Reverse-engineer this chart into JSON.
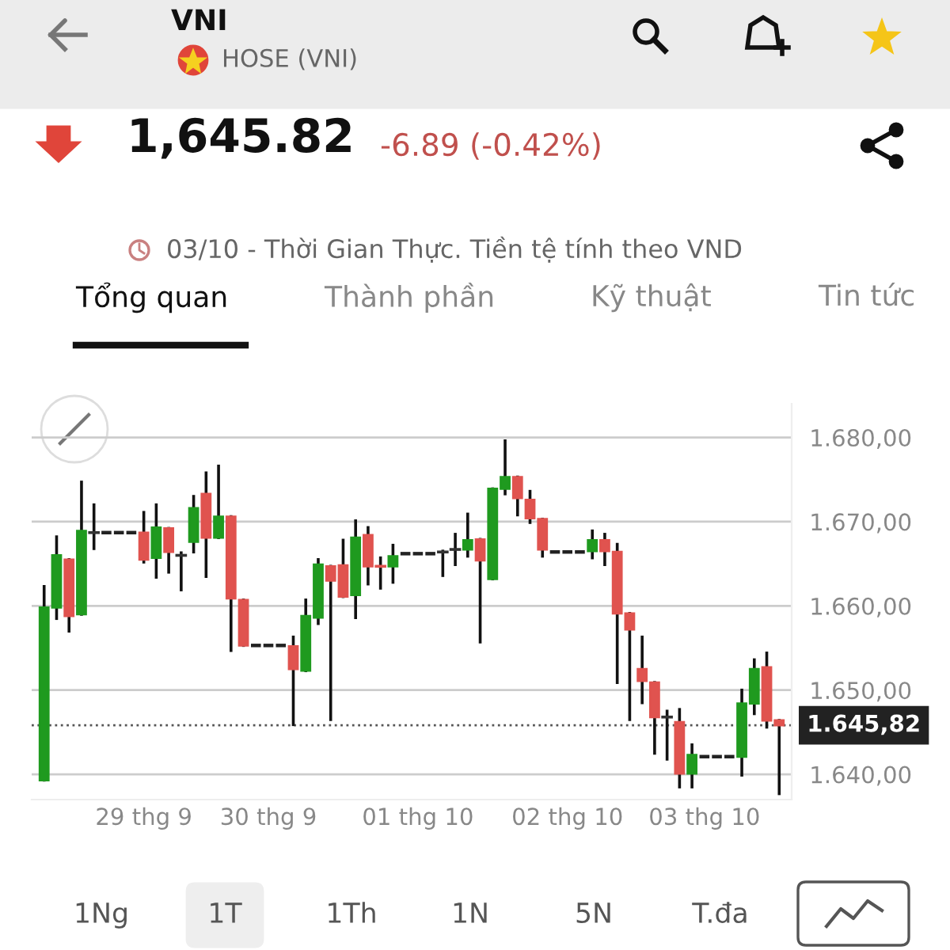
{
  "chart_data": {
    "type": "candlestick",
    "title": "VNI",
    "subtitle": "HOSE (VNI)",
    "annotations": [
      "1,645.82",
      "-6.89 (-0.42%)",
      "03/10 - Thời Gian Thực. Tiền tệ tính theo VND",
      "Tổng quan",
      "Thành phần",
      "Kỹ thuật",
      "Tin tức",
      "1Ng",
      "1T",
      "1Th",
      "1N",
      "5N",
      "T.đa"
    ],
    "categories": [
      null,
      null,
      null,
      null,
      null,
      null,
      null,
      null,
      "29 thg 9",
      null,
      null,
      null,
      null,
      null,
      null,
      null,
      null,
      null,
      "30 thg 9",
      null,
      null,
      null,
      null,
      null,
      null,
      null,
      null,
      null,
      null,
      null,
      "01 thg 10",
      null,
      null,
      null,
      null,
      null,
      null,
      null,
      null,
      null,
      null,
      null,
      "02 thg 10",
      null,
      null,
      null,
      null,
      null,
      null,
      null,
      null,
      null,
      null,
      "03 thg 10",
      null,
      null,
      null,
      null,
      null,
      null
    ],
    "ohlc": [
      [
        1639.3,
        1662.3,
        1639.3,
        1659.8
      ],
      [
        1659.8,
        1668.2,
        1658.5,
        1666.0
      ],
      [
        1665.5,
        1665.5,
        1657.0,
        1658.8
      ],
      [
        1659.0,
        1674.7,
        1659.0,
        1668.9
      ],
      [
        1668.7,
        1672.0,
        1666.8,
        1668.7
      ],
      [
        1668.7,
        1668.7,
        1668.7,
        1668.7
      ],
      [
        1668.7,
        1668.7,
        1668.7,
        1668.7
      ],
      [
        1668.7,
        1668.7,
        1668.7,
        1668.7
      ],
      [
        1668.7,
        1671.1,
        1665.2,
        1665.5
      ],
      [
        1665.7,
        1672.0,
        1663.4,
        1669.3
      ],
      [
        1669.2,
        1669.2,
        1664.0,
        1666.4
      ],
      [
        1666.0,
        1666.3,
        1661.9,
        1666.0
      ],
      [
        1667.6,
        1673.0,
        1666.4,
        1671.6
      ],
      [
        1673.3,
        1675.8,
        1663.5,
        1668.1
      ],
      [
        1668.1,
        1676.6,
        1668.1,
        1670.6
      ],
      [
        1670.6,
        1670.6,
        1654.7,
        1660.9
      ],
      [
        1660.7,
        1660.7,
        1655.3,
        1655.3
      ],
      [
        1655.3,
        1655.3,
        1655.3,
        1655.3
      ],
      [
        1655.3,
        1655.3,
        1655.3,
        1655.3
      ],
      [
        1655.3,
        1655.3,
        1655.3,
        1655.3
      ],
      [
        1655.2,
        1656.3,
        1645.9,
        1652.5
      ],
      [
        1652.3,
        1660.7,
        1652.3,
        1658.8
      ],
      [
        1658.6,
        1665.5,
        1657.9,
        1664.9
      ],
      [
        1664.7,
        1664.7,
        1646.5,
        1663.0
      ],
      [
        1664.8,
        1667.8,
        1661.1,
        1661.1
      ],
      [
        1661.3,
        1670.1,
        1658.6,
        1668.1
      ],
      [
        1668.4,
        1669.3,
        1662.6,
        1664.7
      ],
      [
        1664.7,
        1665.7,
        1662.1,
        1664.7
      ],
      [
        1664.7,
        1667.2,
        1662.8,
        1665.9
      ],
      [
        1666.2,
        1666.2,
        1666.2,
        1666.2
      ],
      [
        1666.2,
        1666.2,
        1666.2,
        1666.2
      ],
      [
        1666.2,
        1666.2,
        1666.2,
        1666.2
      ],
      [
        1666.4,
        1666.5,
        1663.6,
        1666.4
      ],
      [
        1666.7,
        1668.5,
        1664.9,
        1666.7
      ],
      [
        1666.7,
        1670.9,
        1665.9,
        1667.8
      ],
      [
        1667.9,
        1667.9,
        1655.7,
        1665.4
      ],
      [
        1663.2,
        1673.9,
        1663.2,
        1673.9
      ],
      [
        1673.9,
        1679.6,
        1673.3,
        1675.3
      ],
      [
        1675.3,
        1675.3,
        1670.8,
        1672.8
      ],
      [
        1672.6,
        1673.6,
        1669.9,
        1670.4
      ],
      [
        1670.3,
        1670.3,
        1665.9,
        1666.7
      ],
      [
        1666.4,
        1666.4,
        1666.4,
        1666.4
      ],
      [
        1666.4,
        1666.4,
        1666.4,
        1666.4
      ],
      [
        1666.4,
        1666.4,
        1666.4,
        1666.4
      ],
      [
        1666.5,
        1668.9,
        1665.7,
        1667.8
      ],
      [
        1667.8,
        1668.5,
        1664.9,
        1666.5
      ],
      [
        1666.4,
        1667.3,
        1650.9,
        1659.1
      ],
      [
        1659.1,
        1659.1,
        1646.5,
        1657.2
      ],
      [
        1652.5,
        1656.3,
        1648.5,
        1651.1
      ],
      [
        1650.9,
        1650.9,
        1642.5,
        1646.8
      ],
      [
        1646.8,
        1647.5,
        1641.8,
        1646.8
      ],
      [
        1646.2,
        1647.7,
        1638.5,
        1640.1
      ],
      [
        1640.1,
        1643.5,
        1638.5,
        1642.3
      ],
      [
        1642.1,
        1642.1,
        1642.1,
        1642.1
      ],
      [
        1642.1,
        1642.1,
        1642.1,
        1642.1
      ],
      [
        1642.1,
        1642.1,
        1642.1,
        1642.1
      ],
      [
        1642.1,
        1650.0,
        1639.9,
        1648.4
      ],
      [
        1648.4,
        1653.6,
        1647.2,
        1652.5
      ],
      [
        1652.7,
        1654.4,
        1645.6,
        1646.4
      ],
      [
        1646.4,
        1646.4,
        1637.7,
        1645.82
      ]
    ],
    "colors": [
      "#1f9a1f",
      "#1f9a1f",
      "#e0534f",
      "#1f9a1f",
      "#333333",
      "#222222",
      "#222222",
      "#222222",
      "#e0534f",
      "#1f9a1f",
      "#e0534f",
      "#333333",
      "#1f9a1f",
      "#e0534f",
      "#1f9a1f",
      "#e0534f",
      "#e0534f",
      "#222222",
      "#222222",
      "#222222",
      "#e0534f",
      "#1f9a1f",
      "#1f9a1f",
      "#e0534f",
      "#e0534f",
      "#1f9a1f",
      "#e0534f",
      "#e0534f",
      "#1f9a1f",
      "#222222",
      "#222222",
      "#222222",
      "#333333",
      "#333333",
      "#1f9a1f",
      "#e0534f",
      "#1f9a1f",
      "#1f9a1f",
      "#e0534f",
      "#e0534f",
      "#e0534f",
      "#222222",
      "#222222",
      "#222222",
      "#1f9a1f",
      "#e0534f",
      "#e0534f",
      "#e0534f",
      "#e0534f",
      "#e0534f",
      "#333333",
      "#e0534f",
      "#1f9a1f",
      "#222222",
      "#222222",
      "#222222",
      "#1f9a1f",
      "#1f9a1f",
      "#e0534f",
      "#e0534f"
    ],
    "ylim": [
      1637,
      1684
    ],
    "yticks": [
      {
        "value": 1640,
        "label": "1.640,00"
      },
      {
        "value": 1650,
        "label": "1.650,00"
      },
      {
        "value": 1660,
        "label": "1.660,00"
      },
      {
        "value": 1670,
        "label": "1.670,00"
      },
      {
        "value": 1680,
        "label": "1.680,00"
      }
    ],
    "grid": "y",
    "ref_lines": [
      {
        "axis": "y",
        "value": 1645.82,
        "label": "1.645,82",
        "color": "#555555",
        "line_style": "dotted"
      }
    ]
  }
}
